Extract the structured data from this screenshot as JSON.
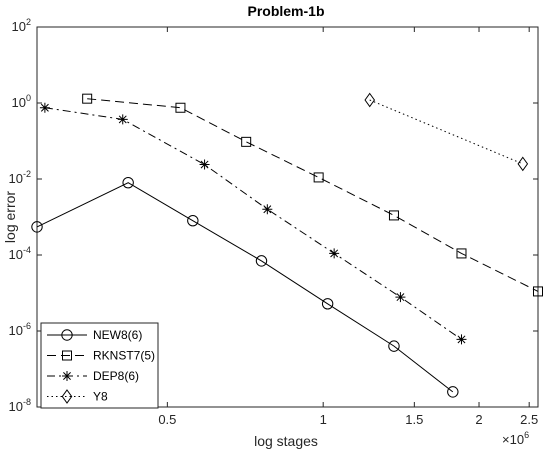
{
  "chart_data": {
    "type": "line",
    "title": "Problem-1b",
    "xlabel": "log stages",
    "ylabel": "log error",
    "x_scale": "log",
    "y_scale": "log",
    "xlim": [
      280000,
      2600000
    ],
    "ylim": [
      1e-08,
      100
    ],
    "x_ticks": [
      {
        "value": 500000,
        "label": "0.5"
      },
      {
        "value": 1000000,
        "label": "1"
      },
      {
        "value": 1500000,
        "label": "1.5"
      },
      {
        "value": 2000000,
        "label": "2"
      },
      {
        "value": 2500000,
        "label": "2.5"
      }
    ],
    "x_exponent_label": "×10",
    "x_exponent_power": "6",
    "y_ticks": [
      {
        "value": 1e-08,
        "mant": "10",
        "exp": "-8"
      },
      {
        "value": 1e-06,
        "mant": "10",
        "exp": "-6"
      },
      {
        "value": 0.0001,
        "mant": "10",
        "exp": "-4"
      },
      {
        "value": 0.01,
        "mant": "10",
        "exp": "-2"
      },
      {
        "value": 1,
        "mant": "10",
        "exp": "0"
      },
      {
        "value": 100,
        "mant": "10",
        "exp": "2"
      }
    ],
    "grid": false,
    "legend_position": "bottom-left",
    "series": [
      {
        "name": "NEW8(6)",
        "marker": "circle",
        "dash": "solid",
        "x": [
          280000,
          420000,
          560000,
          760000,
          1020000,
          1370000,
          1780000
        ],
        "y": [
          0.00055,
          0.008,
          0.0008,
          7e-05,
          5.2e-06,
          4e-07,
          2.5e-08
        ]
      },
      {
        "name": "RKNST7(5)",
        "marker": "square",
        "dash": "dashed",
        "x": [
          350000,
          530000,
          710000,
          980000,
          1370000,
          1850000,
          2600000
        ],
        "y": [
          1.3,
          0.75,
          0.095,
          0.011,
          0.0011,
          0.00011,
          1.1e-05
        ]
      },
      {
        "name": "DEP8(6)",
        "marker": "asterisk",
        "dash": "dashdot",
        "x": [
          290000,
          410000,
          590000,
          780000,
          1050000,
          1410000,
          1850000
        ],
        "y": [
          0.75,
          0.37,
          0.024,
          0.0016,
          0.00011,
          7.8e-06,
          6e-07
        ]
      },
      {
        "name": "Y8",
        "marker": "diamond",
        "dash": "dotted",
        "x": [
          1230000,
          2430000
        ],
        "y": [
          1.2,
          0.025
        ]
      }
    ]
  }
}
